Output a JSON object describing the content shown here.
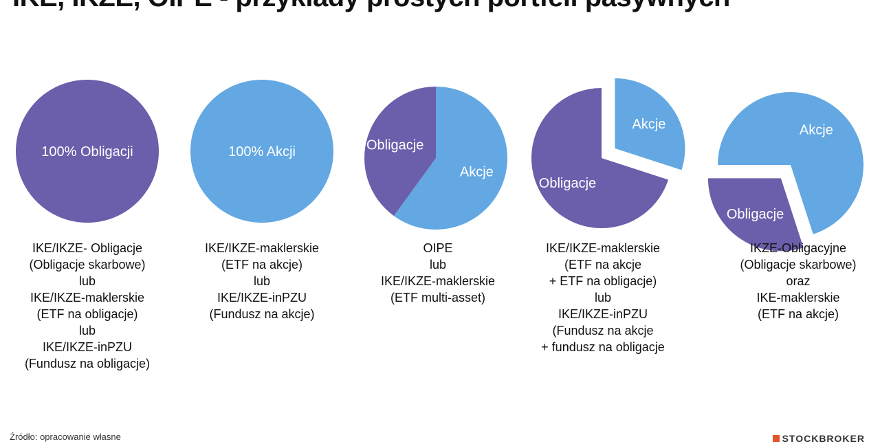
{
  "title": "IKE, IKZE, OIPE - przykłady prostych portfeli pasywnych",
  "colors": {
    "obligacje": "#6b5eaa",
    "akcje": "#63a8e2",
    "label": "#ffffff"
  },
  "chart_data": [
    {
      "type": "pie",
      "slices": [
        {
          "label": "100% Obligacji",
          "value": 100,
          "color": "#6b5eaa"
        }
      ]
    },
    {
      "type": "pie",
      "slices": [
        {
          "label": "100% Akcji",
          "value": 100,
          "color": "#63a8e2"
        }
      ]
    },
    {
      "type": "pie",
      "slices": [
        {
          "label": "Akcje",
          "value": 60,
          "color": "#63a8e2"
        },
        {
          "label": "Obligacje",
          "value": 40,
          "color": "#6b5eaa"
        }
      ]
    },
    {
      "type": "pie",
      "slices": [
        {
          "label": "Akcje",
          "value": 30,
          "color": "#63a8e2",
          "exploded": true
        },
        {
          "label": "Obligacje",
          "value": 70,
          "color": "#6b5eaa"
        }
      ]
    },
    {
      "type": "pie",
      "slices": [
        {
          "label": "Akcje",
          "value": 70,
          "color": "#63a8e2"
        },
        {
          "label": "Obligacje",
          "value": 30,
          "color": "#6b5eaa",
          "exploded": true
        }
      ]
    }
  ],
  "columns": [
    {
      "lines": [
        "IKE/IKZE- Obligacje",
        "(Obligacje skarbowe)",
        "lub",
        "IKE/IKZE-maklerskie",
        "(ETF na obligacje)",
        "lub",
        "IKE/IKZE-inPZU",
        "(Fundusz na obligacje)"
      ]
    },
    {
      "lines": [
        "IKE/IKZE-maklerskie",
        "(ETF na akcje)",
        "lub",
        "IKE/IKZE-inPZU",
        "(Fundusz na akcje)"
      ]
    },
    {
      "lines": [
        "OIPE",
        "lub",
        "IKE/IKZE-maklerskie",
        "(ETF multi-asset)"
      ]
    },
    {
      "lines": [
        "IKE/IKZE-maklerskie",
        "(ETF na akcje",
        "+ ETF na obligacje)",
        "lub",
        "IKE/IKZE-inPZU",
        "(Fundusz na akcje",
        "+ fundusz na obligacje"
      ]
    },
    {
      "lines": [
        "IKZE-Obligacyjne",
        "(Obligacje skarbowe)",
        "oraz",
        "IKE-maklerskie",
        "(ETF na akcje)"
      ]
    }
  ],
  "footer": {
    "source": "Źródło: opracowanie własne",
    "logo": "STOCKBROKER"
  }
}
